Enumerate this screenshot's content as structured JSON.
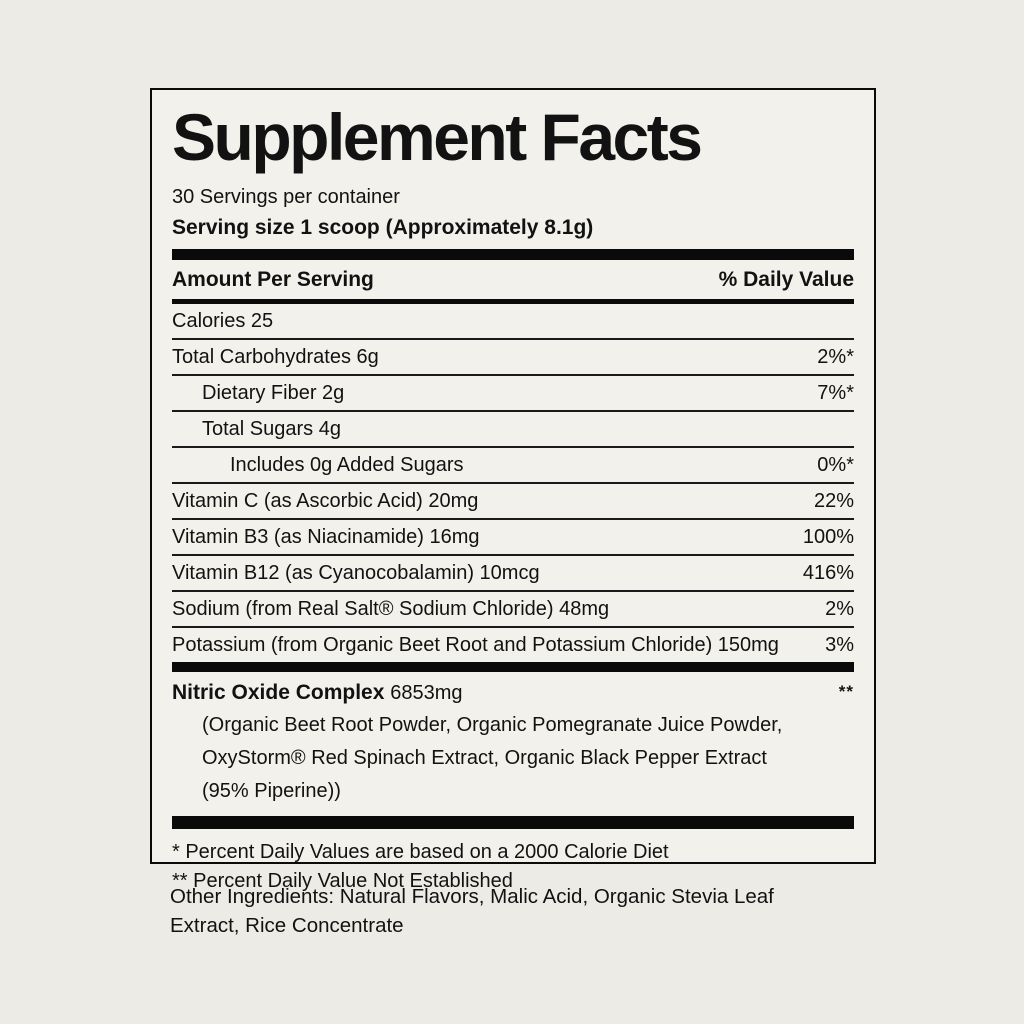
{
  "page": {
    "background": "#ecebe5",
    "panel_background": "#f2f1eb",
    "ink": "#121212",
    "rule_color": "#0a0a0a"
  },
  "label": {
    "title": "Supplement Facts",
    "servings_per_container": "30 Servings per container",
    "serving_size": "Serving size 1 scoop (Approximately 8.1g)",
    "columns": {
      "left": "Amount Per Serving",
      "right": "% Daily Value"
    },
    "rows": [
      {
        "name": "Calories 25",
        "daily_value": ""
      },
      {
        "name": "Total Carbohydrates 6g",
        "daily_value": "2%*"
      },
      {
        "name": "Dietary Fiber 2g",
        "daily_value": "7%*"
      },
      {
        "name": "Total Sugars 4g",
        "daily_value": ""
      },
      {
        "name": "Includes 0g Added Sugars",
        "daily_value": "0%*"
      },
      {
        "name": "Vitamin C (as Ascorbic Acid) 20mg",
        "daily_value": "22%"
      },
      {
        "name": "Vitamin B3 (as Niacinamide) 16mg",
        "daily_value": "100%"
      },
      {
        "name": "Vitamin B12 (as Cyanocobalamin) 10mcg",
        "daily_value": "416%"
      },
      {
        "name": "Sodium (from Real Salt® Sodium Chloride) 48mg",
        "daily_value": "2%"
      },
      {
        "name": "Potassium (from Organic Beet Root and Potassium Chloride) 150mg",
        "daily_value": "3%"
      }
    ],
    "complex": {
      "name": "Nitric Oxide Complex",
      "amount": "6853mg",
      "daily_value": "**",
      "description_lines": [
        "(Organic Beet Root Powder, Organic Pomegranate Juice Powder,",
        "OxyStorm® Red Spinach Extract, Organic Black Pepper Extract",
        "(95% Piperine))"
      ]
    },
    "footnotes": [
      "* Percent Daily Values are based on a 2000 Calorie Diet",
      "** Percent Daily Value Not Established"
    ]
  },
  "other_ingredients": "Other Ingredients: Natural Flavors, Malic Acid, Organic Stevia Leaf Extract, Rice Concentrate"
}
